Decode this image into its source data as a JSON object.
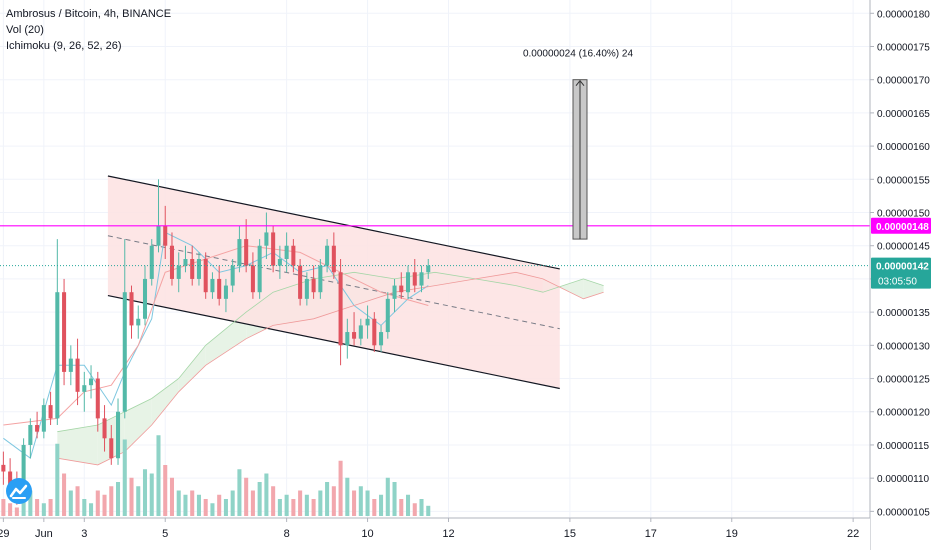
{
  "legend": {
    "title": "Ambrosus / Bitcoin, 4h, BINANCE",
    "vol": "Vol (20)",
    "ichimoku": "Ichimoku (9, 26, 52, 26)"
  },
  "colors": {
    "up": "#53b9a8",
    "down": "#e0525e",
    "resistance": "#ff00ff",
    "current": "#26a69a",
    "channel_fill": "#fde2e2",
    "cloud_bull": "#e7f3e6",
    "cloud_bear": "#fbdada"
  },
  "chart_data": {
    "type": "candlestick",
    "title": "Ambrosus / Bitcoin, 4h, BINANCE",
    "y_ticks": [
      "0.00000180",
      "0.00000175",
      "0.00000170",
      "0.00000165",
      "0.00000160",
      "0.00000155",
      "0.00000150",
      "0.00000145",
      "0.00000140",
      "0.00000135",
      "0.00000130",
      "0.00000125",
      "0.00000120",
      "0.00000115",
      "0.00000110",
      "0.00000105"
    ],
    "x_ticks": [
      {
        "label": "29",
        "x": 0
      },
      {
        "label": "Jun",
        "x": 6
      },
      {
        "label": "3",
        "x": 12
      },
      {
        "label": "5",
        "x": 24
      },
      {
        "label": "8",
        "x": 42
      },
      {
        "label": "10",
        "x": 54
      },
      {
        "label": "12",
        "x": 66
      },
      {
        "label": "15",
        "x": 84
      },
      {
        "label": "17",
        "x": 96
      },
      {
        "label": "19",
        "x": 108
      },
      {
        "label": "22",
        "x": 126
      }
    ],
    "ylim": [
      1.04e-06,
      1.82e-06
    ],
    "xlim": [
      -0.5,
      128.5
    ],
    "horizontal_lines": [
      {
        "label": "0.00000148",
        "value": 1.48e-06,
        "color": "#ff00ff"
      },
      {
        "label": "0.00000142",
        "value": 1.42e-06,
        "color": "#26a69a",
        "countdown": "03:05:50"
      }
    ],
    "measure": {
      "label": "0.00000024 (16.40%) 24",
      "x": 85.5,
      "from": 1.46e-06,
      "to": 1.7e-06
    },
    "channel": {
      "upper": [
        [
          15.5,
          1.555e-06
        ],
        [
          82.5,
          1.415e-06
        ]
      ],
      "lower": [
        [
          15.5,
          1.375e-06
        ],
        [
          82.5,
          1.235e-06
        ]
      ],
      "mid": [
        [
          15.5,
          1.465e-06
        ],
        [
          82.5,
          1.325e-06
        ]
      ]
    },
    "candles": [
      [
        0,
        1.12e-06,
        1.14e-06,
        1.09e-06,
        1.11e-06
      ],
      [
        1,
        1.11e-06,
        1.13e-06,
        1.08e-06,
        1.09e-06
      ],
      [
        2,
        1.09e-06,
        1.11e-06,
        1.06e-06,
        1.08e-06
      ],
      [
        3,
        1.08e-06,
        1.16e-06,
        1.07e-06,
        1.15e-06
      ],
      [
        4,
        1.15e-06,
        1.19e-06,
        1.13e-06,
        1.18e-06
      ],
      [
        5,
        1.18e-06,
        1.2e-06,
        1.16e-06,
        1.17e-06
      ],
      [
        6,
        1.17e-06,
        1.22e-06,
        1.16e-06,
        1.21e-06
      ],
      [
        7,
        1.21e-06,
        1.23e-06,
        1.18e-06,
        1.19e-06
      ],
      [
        8,
        1.19e-06,
        1.46e-06,
        1.18e-06,
        1.38e-06
      ],
      [
        9,
        1.38e-06,
        1.4e-06,
        1.24e-06,
        1.26e-06
      ],
      [
        10,
        1.26e-06,
        1.3e-06,
        1.24e-06,
        1.28e-06
      ],
      [
        11,
        1.28e-06,
        1.31e-06,
        1.21e-06,
        1.23e-06
      ],
      [
        12,
        1.23e-06,
        1.26e-06,
        1.2e-06,
        1.24e-06
      ],
      [
        13,
        1.24e-06,
        1.27e-06,
        1.22e-06,
        1.25e-06
      ],
      [
        14,
        1.25e-06,
        1.26e-06,
        1.17e-06,
        1.19e-06
      ],
      [
        15,
        1.19e-06,
        1.21e-06,
        1.14e-06,
        1.16e-06
      ],
      [
        16,
        1.16e-06,
        1.18e-06,
        1.12e-06,
        1.13e-06
      ],
      [
        17,
        1.13e-06,
        1.22e-06,
        1.12e-06,
        1.2e-06
      ],
      [
        18,
        1.2e-06,
        1.46e-06,
        1.19e-06,
        1.38e-06
      ],
      [
        19,
        1.38e-06,
        1.39e-06,
        1.31e-06,
        1.33e-06
      ],
      [
        20,
        1.33e-06,
        1.36e-06,
        1.31e-06,
        1.34e-06
      ],
      [
        21,
        1.34e-06,
        1.42e-06,
        1.33e-06,
        1.4e-06
      ],
      [
        22,
        1.4e-06,
        1.46e-06,
        1.39e-06,
        1.45e-06
      ],
      [
        23,
        1.45e-06,
        1.55e-06,
        1.44e-06,
        1.48e-06
      ],
      [
        24,
        1.48e-06,
        1.51e-06,
        1.43e-06,
        1.45e-06
      ],
      [
        25,
        1.45e-06,
        1.47e-06,
        1.39e-06,
        1.4e-06
      ],
      [
        26,
        1.4e-06,
        1.44e-06,
        1.38e-06,
        1.42e-06
      ],
      [
        27,
        1.42e-06,
        1.45e-06,
        1.41e-06,
        1.43e-06
      ],
      [
        28,
        1.43e-06,
        1.45e-06,
        1.39e-06,
        1.4e-06
      ],
      [
        29,
        1.4e-06,
        1.44e-06,
        1.39e-06,
        1.43e-06
      ],
      [
        30,
        1.43e-06,
        1.44e-06,
        1.37e-06,
        1.38e-06
      ],
      [
        31,
        1.38e-06,
        1.41e-06,
        1.37e-06,
        1.4e-06
      ],
      [
        32,
        1.4e-06,
        1.42e-06,
        1.36e-06,
        1.37e-06
      ],
      [
        33,
        1.37e-06,
        1.4e-06,
        1.35e-06,
        1.39e-06
      ],
      [
        34,
        1.39e-06,
        1.43e-06,
        1.38e-06,
        1.42e-06
      ],
      [
        35,
        1.42e-06,
        1.48e-06,
        1.41e-06,
        1.46e-06
      ],
      [
        36,
        1.46e-06,
        1.49e-06,
        1.41e-06,
        1.42e-06
      ],
      [
        37,
        1.42e-06,
        1.44e-06,
        1.37e-06,
        1.38e-06
      ],
      [
        38,
        1.38e-06,
        1.46e-06,
        1.37e-06,
        1.45e-06
      ],
      [
        39,
        1.45e-06,
        1.5e-06,
        1.43e-06,
        1.47e-06
      ],
      [
        40,
        1.47e-06,
        1.48e-06,
        1.41e-06,
        1.42e-06
      ],
      [
        41,
        1.42e-06,
        1.45e-06,
        1.4e-06,
        1.43e-06
      ],
      [
        42,
        1.43e-06,
        1.47e-06,
        1.41e-06,
        1.45e-06
      ],
      [
        43,
        1.45e-06,
        1.46e-06,
        1.41e-06,
        1.42e-06
      ],
      [
        44,
        1.42e-06,
        1.43e-06,
        1.36e-06,
        1.37e-06
      ],
      [
        45,
        1.37e-06,
        1.41e-06,
        1.36e-06,
        1.4e-06
      ],
      [
        46,
        1.4e-06,
        1.42e-06,
        1.37e-06,
        1.38e-06
      ],
      [
        47,
        1.38e-06,
        1.43e-06,
        1.37e-06,
        1.42e-06
      ],
      [
        48,
        1.42e-06,
        1.46e-06,
        1.41e-06,
        1.45e-06
      ],
      [
        49,
        1.45e-06,
        1.47e-06,
        1.4e-06,
        1.41e-06
      ],
      [
        50,
        1.41e-06,
        1.43e-06,
        1.27e-06,
        1.3e-06
      ],
      [
        51,
        1.3e-06,
        1.34e-06,
        1.28e-06,
        1.32e-06
      ],
      [
        52,
        1.32e-06,
        1.35e-06,
        1.3e-06,
        1.31e-06
      ],
      [
        53,
        1.31e-06,
        1.34e-06,
        1.3e-06,
        1.33e-06
      ],
      [
        54,
        1.33e-06,
        1.36e-06,
        1.31e-06,
        1.34e-06
      ],
      [
        55,
        1.34e-06,
        1.35e-06,
        1.29e-06,
        1.3e-06
      ],
      [
        56,
        1.3e-06,
        1.33e-06,
        1.29e-06,
        1.32e-06
      ],
      [
        57,
        1.32e-06,
        1.38e-06,
        1.31e-06,
        1.37e-06
      ],
      [
        58,
        1.37e-06,
        1.4e-06,
        1.35e-06,
        1.39e-06
      ],
      [
        59,
        1.39e-06,
        1.41e-06,
        1.37e-06,
        1.38e-06
      ],
      [
        60,
        1.38e-06,
        1.42e-06,
        1.37e-06,
        1.41e-06
      ],
      [
        61,
        1.41e-06,
        1.43e-06,
        1.38e-06,
        1.39e-06
      ],
      [
        62,
        1.39e-06,
        1.42e-06,
        1.38e-06,
        1.41e-06
      ],
      [
        63,
        1.41e-06,
        1.43e-06,
        1.4e-06,
        1.42e-06
      ]
    ],
    "volumes": [
      [
        0,
        0.2,
        0
      ],
      [
        1,
        0.15,
        0
      ],
      [
        2,
        0.1,
        0
      ],
      [
        3,
        0.25,
        1
      ],
      [
        4,
        0.3,
        1
      ],
      [
        5,
        0.2,
        0
      ],
      [
        6,
        0.15,
        1
      ],
      [
        7,
        0.2,
        0
      ],
      [
        8,
        0.85,
        1
      ],
      [
        9,
        0.5,
        0
      ],
      [
        10,
        0.3,
        1
      ],
      [
        11,
        0.35,
        0
      ],
      [
        12,
        0.2,
        1
      ],
      [
        13,
        0.15,
        1
      ],
      [
        14,
        0.3,
        0
      ],
      [
        15,
        0.25,
        0
      ],
      [
        16,
        0.35,
        0
      ],
      [
        17,
        0.4,
        1
      ],
      [
        18,
        0.9,
        1
      ],
      [
        19,
        0.45,
        0
      ],
      [
        20,
        0.35,
        1
      ],
      [
        21,
        0.55,
        1
      ],
      [
        22,
        0.5,
        1
      ],
      [
        23,
        0.95,
        1
      ],
      [
        24,
        0.6,
        0
      ],
      [
        25,
        0.45,
        0
      ],
      [
        26,
        0.3,
        1
      ],
      [
        27,
        0.25,
        1
      ],
      [
        28,
        0.3,
        0
      ],
      [
        29,
        0.25,
        1
      ],
      [
        30,
        0.2,
        0
      ],
      [
        31,
        0.15,
        1
      ],
      [
        32,
        0.25,
        0
      ],
      [
        33,
        0.2,
        1
      ],
      [
        34,
        0.3,
        1
      ],
      [
        35,
        0.55,
        1
      ],
      [
        36,
        0.45,
        0
      ],
      [
        37,
        0.3,
        0
      ],
      [
        38,
        0.4,
        1
      ],
      [
        39,
        0.5,
        1
      ],
      [
        40,
        0.35,
        0
      ],
      [
        41,
        0.2,
        1
      ],
      [
        42,
        0.25,
        1
      ],
      [
        43,
        0.2,
        0
      ],
      [
        44,
        0.3,
        0
      ],
      [
        45,
        0.25,
        1
      ],
      [
        46,
        0.2,
        0
      ],
      [
        47,
        0.3,
        1
      ],
      [
        48,
        0.4,
        1
      ],
      [
        49,
        0.35,
        0
      ],
      [
        50,
        0.65,
        0
      ],
      [
        51,
        0.45,
        1
      ],
      [
        52,
        0.3,
        0
      ],
      [
        53,
        0.35,
        1
      ],
      [
        54,
        0.3,
        1
      ],
      [
        55,
        0.2,
        0
      ],
      [
        56,
        0.25,
        1
      ],
      [
        57,
        0.45,
        1
      ],
      [
        58,
        0.4,
        1
      ],
      [
        59,
        0.2,
        0
      ],
      [
        60,
        0.25,
        1
      ],
      [
        61,
        0.15,
        0
      ],
      [
        62,
        0.2,
        1
      ],
      [
        63,
        0.12,
        1
      ]
    ],
    "tenkan": [
      [
        0,
        1.16e-06
      ],
      [
        4,
        1.13e-06
      ],
      [
        8,
        1.27e-06
      ],
      [
        12,
        1.27e-06
      ],
      [
        16,
        1.21e-06
      ],
      [
        18,
        1.26e-06
      ],
      [
        22,
        1.34e-06
      ],
      [
        24,
        1.47e-06
      ],
      [
        28,
        1.45e-06
      ],
      [
        32,
        1.41e-06
      ],
      [
        36,
        1.42e-06
      ],
      [
        40,
        1.44e-06
      ],
      [
        44,
        1.41e-06
      ],
      [
        48,
        1.42e-06
      ],
      [
        52,
        1.36e-06
      ],
      [
        56,
        1.33e-06
      ],
      [
        60,
        1.37e-06
      ],
      [
        63,
        1.39e-06
      ]
    ],
    "kijun": [
      [
        0,
        1.18e-06
      ],
      [
        8,
        1.19e-06
      ],
      [
        12,
        1.23e-06
      ],
      [
        16,
        1.24e-06
      ],
      [
        20,
        1.3e-06
      ],
      [
        24,
        1.41e-06
      ],
      [
        30,
        1.43e-06
      ],
      [
        36,
        1.45e-06
      ],
      [
        44,
        1.44e-06
      ],
      [
        50,
        1.41e-06
      ],
      [
        56,
        1.38e-06
      ],
      [
        63,
        1.36e-06
      ]
    ],
    "cloud_a": [
      [
        8,
        1.17e-06
      ],
      [
        14,
        1.18e-06
      ],
      [
        18,
        1.2e-06
      ],
      [
        22,
        1.22e-06
      ],
      [
        26,
        1.25e-06
      ],
      [
        30,
        1.3e-06
      ],
      [
        36,
        1.35e-06
      ],
      [
        40,
        1.38e-06
      ],
      [
        46,
        1.4e-06
      ],
      [
        52,
        1.41e-06
      ],
      [
        58,
        1.4e-06
      ],
      [
        64,
        1.41e-06
      ],
      [
        70,
        1.4e-06
      ],
      [
        76,
        1.39e-06
      ],
      [
        80,
        1.38e-06
      ],
      [
        86,
        1.4e-06
      ],
      [
        89,
        1.39e-06
      ]
    ],
    "cloud_b": [
      [
        8,
        1.13e-06
      ],
      [
        14,
        1.12e-06
      ],
      [
        18,
        1.14e-06
      ],
      [
        22,
        1.18e-06
      ],
      [
        26,
        1.23e-06
      ],
      [
        30,
        1.27e-06
      ],
      [
        36,
        1.31e-06
      ],
      [
        40,
        1.33e-06
      ],
      [
        46,
        1.34e-06
      ],
      [
        52,
        1.36e-06
      ],
      [
        58,
        1.38e-06
      ],
      [
        64,
        1.39e-06
      ],
      [
        70,
        1.4e-06
      ],
      [
        76,
        1.41e-06
      ],
      [
        80,
        1.4e-06
      ],
      [
        86,
        1.37e-06
      ],
      [
        89,
        1.38e-06
      ]
    ]
  }
}
